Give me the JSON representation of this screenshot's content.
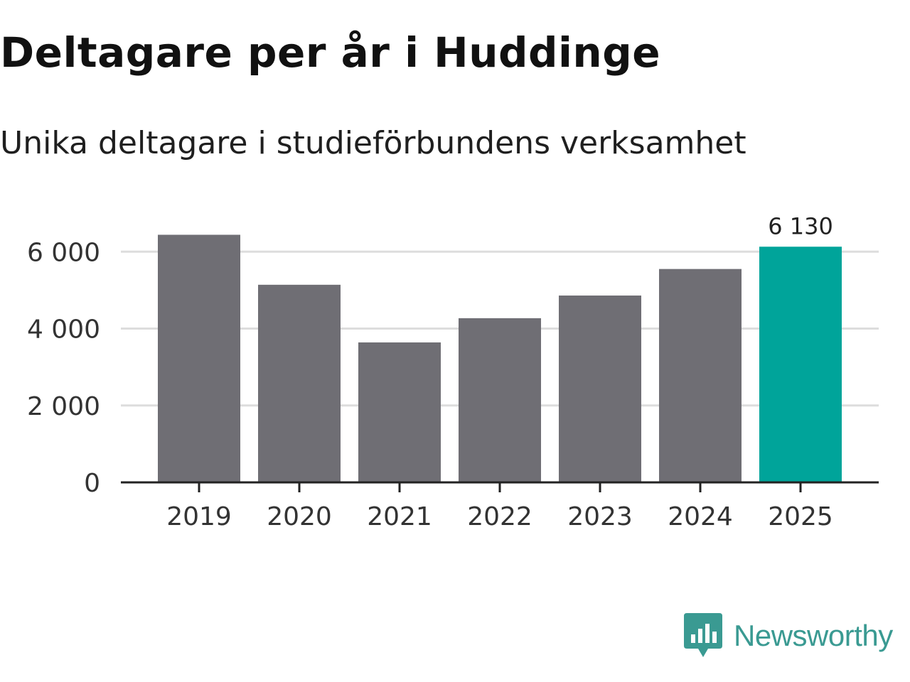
{
  "title": "Deltagare per år i Huddinge",
  "subtitle": "Unika deltagare i studieförbundens verksamhet",
  "brand": {
    "name": "Newsworthy",
    "color": "#3a9a92",
    "icon": "newsworthy-chart-bubble-icon"
  },
  "colors": {
    "bar": "#6f6e74",
    "highlight": "#00a49a",
    "grid": "#dddddd",
    "axis": "#222222",
    "text": "#333333"
  },
  "chart_data": {
    "type": "bar",
    "title": "Deltagare per år i Huddinge",
    "subtitle": "Unika deltagare i studieförbundens verksamhet",
    "xlabel": "",
    "ylabel": "",
    "categories": [
      "2019",
      "2020",
      "2021",
      "2022",
      "2023",
      "2024",
      "2025"
    ],
    "values": [
      6440,
      5140,
      3640,
      4270,
      4860,
      5550,
      6130
    ],
    "highlight_index": 6,
    "data_labels": [
      {
        "index": 6,
        "text": "6 130"
      }
    ],
    "ylim": [
      0,
      6800
    ],
    "yticks": [
      {
        "value": 0,
        "label": "0"
      },
      {
        "value": 2000,
        "label": "2 000"
      },
      {
        "value": 4000,
        "label": "4 000"
      },
      {
        "value": 6000,
        "label": "6 000"
      }
    ],
    "grid": true,
    "legend": "none"
  }
}
